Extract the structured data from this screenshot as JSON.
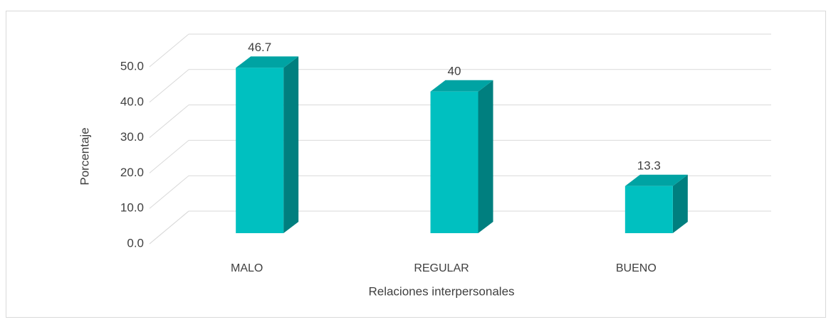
{
  "chart_data": {
    "type": "bar3d",
    "categories": [
      "MALO",
      "REGULAR",
      "BUENO"
    ],
    "values": [
      46.7,
      40.0,
      13.3
    ],
    "color": "#00c0c0",
    "ylim": [
      0,
      50
    ],
    "yticks": [
      {
        "value": 0,
        "label": "0.0"
      },
      {
        "value": 10,
        "label": "10.0"
      },
      {
        "value": 20,
        "label": "20.0"
      },
      {
        "value": 30,
        "label": "30.0"
      },
      {
        "value": 40,
        "label": "40.0"
      },
      {
        "value": 50,
        "label": "50.0"
      }
    ],
    "ylabel": "Porcentaje",
    "xlabel": "Relaciones interpersonales",
    "grid": true
  }
}
